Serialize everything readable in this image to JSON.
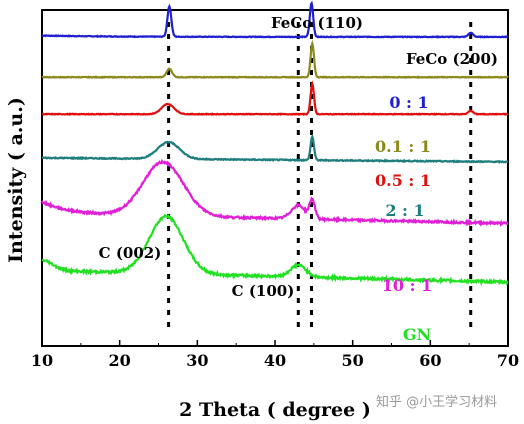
{
  "chart_data": {
    "type": "line",
    "xlabel": "2 Theta ( degree )",
    "ylabel": "Intensity ( a.u.)",
    "xlim": [
      10,
      70
    ],
    "xticks": [
      10,
      20,
      30,
      40,
      50,
      60,
      70
    ],
    "yticks_shown": false,
    "grid": false,
    "legend": "none",
    "reference_lines_2theta": [
      26.3,
      43.0,
      44.7,
      65.2
    ],
    "peak_labels": [
      {
        "text": "FeCo (110)",
        "x": 44.7
      },
      {
        "text": "FeCo (200)",
        "x": 65.2
      },
      {
        "text": "C (002)",
        "x": 26.0
      },
      {
        "text": "C (100)",
        "x": 43.0
      }
    ],
    "series": [
      {
        "name": "0 : 1",
        "color": "#2020d0",
        "baseline": 0.92
      },
      {
        "name": "0.1 : 1",
        "color": "#8c8a1e",
        "baseline": 0.8
      },
      {
        "name": "0.5 : 1",
        "color": "#e01010",
        "baseline": 0.69
      },
      {
        "name": "2 : 1",
        "color": "#1e7e7e",
        "baseline": 0.56
      },
      {
        "name": "10 : 1",
        "color": "#e020d8",
        "baseline": 0.38
      },
      {
        "name": "GN",
        "color": "#22e022",
        "baseline": 0.22
      }
    ]
  },
  "watermark": "知乎 @小王学习材料"
}
